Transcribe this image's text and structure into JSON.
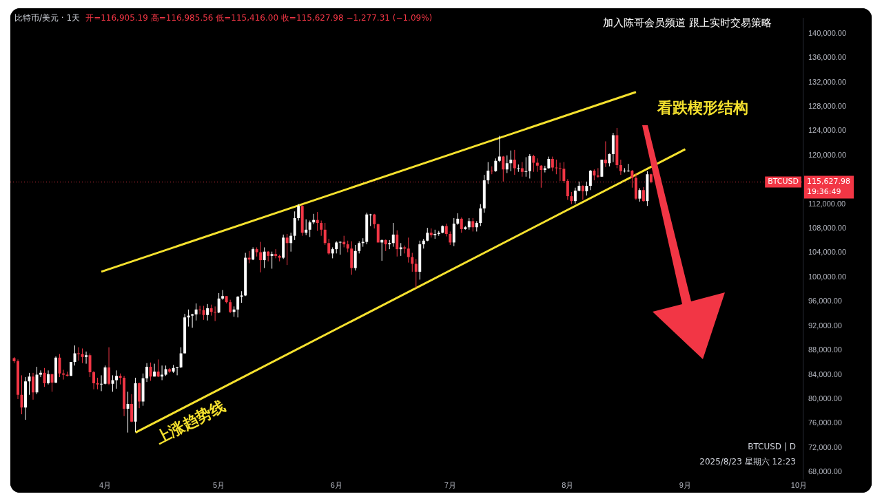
{
  "chart_data": {
    "type": "candlestick",
    "title": "比特币/美元 · 1天",
    "subtitle": "开=116,905.19 高=116,985.56 低=115,416.00 收=115,627.98 −1,277.31 (−1.09%)",
    "x": [
      "2025-03-08",
      "2025-03-09",
      "2025-03-10",
      "2025-03-11",
      "2025-03-12",
      "2025-03-13",
      "2025-03-14",
      "2025-03-15",
      "2025-03-16",
      "2025-03-17",
      "2025-03-18",
      "2025-03-19",
      "2025-03-20",
      "2025-03-21",
      "2025-03-22",
      "2025-03-23",
      "2025-03-24",
      "2025-03-25",
      "2025-03-26",
      "2025-03-27",
      "2025-03-28",
      "2025-03-29",
      "2025-03-30",
      "2025-03-31",
      "2025-04-01",
      "2025-04-02",
      "2025-04-03",
      "2025-04-04",
      "2025-04-05",
      "2025-04-06",
      "2025-04-07",
      "2025-04-08",
      "2025-04-09",
      "2025-04-10",
      "2025-04-11",
      "2025-04-12",
      "2025-04-13",
      "2025-04-14",
      "2025-04-15",
      "2025-04-16",
      "2025-04-17",
      "2025-04-18",
      "2025-04-19",
      "2025-04-20",
      "2025-04-21",
      "2025-04-22",
      "2025-04-23",
      "2025-04-24",
      "2025-04-25",
      "2025-04-26",
      "2025-04-27",
      "2025-04-28",
      "2025-04-29",
      "2025-04-30",
      "2025-05-01",
      "2025-05-02",
      "2025-05-03",
      "2025-05-04",
      "2025-05-05",
      "2025-05-06",
      "2025-05-07",
      "2025-05-08",
      "2025-05-09",
      "2025-05-10",
      "2025-05-11",
      "2025-05-12",
      "2025-05-13",
      "2025-05-14",
      "2025-05-15",
      "2025-05-16",
      "2025-05-17",
      "2025-05-18",
      "2025-05-19",
      "2025-05-20",
      "2025-05-21",
      "2025-05-22",
      "2025-05-23",
      "2025-05-24",
      "2025-05-25",
      "2025-05-26",
      "2025-05-27",
      "2025-05-28",
      "2025-05-29",
      "2025-05-30",
      "2025-05-31",
      "2025-06-01",
      "2025-06-02",
      "2025-06-03",
      "2025-06-04",
      "2025-06-05",
      "2025-06-06",
      "2025-06-07",
      "2025-06-08",
      "2025-06-09",
      "2025-06-10",
      "2025-06-11",
      "2025-06-12",
      "2025-06-13",
      "2025-06-14",
      "2025-06-15",
      "2025-06-16",
      "2025-06-17",
      "2025-06-18",
      "2025-06-19",
      "2025-06-20",
      "2025-06-21",
      "2025-06-22",
      "2025-06-23",
      "2025-06-24",
      "2025-06-25",
      "2025-06-26",
      "2025-06-27",
      "2025-06-28",
      "2025-06-29",
      "2025-06-30",
      "2025-07-01",
      "2025-07-02",
      "2025-07-03",
      "2025-07-04",
      "2025-07-05",
      "2025-07-06",
      "2025-07-07",
      "2025-07-08",
      "2025-07-09",
      "2025-07-10",
      "2025-07-11",
      "2025-07-12",
      "2025-07-13",
      "2025-07-14",
      "2025-07-15",
      "2025-07-16",
      "2025-07-17",
      "2025-07-18",
      "2025-07-19",
      "2025-07-20",
      "2025-07-21",
      "2025-07-22",
      "2025-07-23",
      "2025-07-24",
      "2025-07-25",
      "2025-07-26",
      "2025-07-27",
      "2025-07-28",
      "2025-07-29",
      "2025-07-30",
      "2025-07-31",
      "2025-08-01",
      "2025-08-02",
      "2025-08-03",
      "2025-08-04",
      "2025-08-05",
      "2025-08-06",
      "2025-08-07",
      "2025-08-08",
      "2025-08-09",
      "2025-08-10",
      "2025-08-11",
      "2025-08-12",
      "2025-08-13",
      "2025-08-14",
      "2025-08-15",
      "2025-08-16",
      "2025-08-17",
      "2025-08-18",
      "2025-08-19",
      "2025-08-20",
      "2025-08-21",
      "2025-08-22",
      "2025-08-23"
    ],
    "ohlc": [
      [
        86700,
        86900,
        85900,
        86200
      ],
      [
        86200,
        86500,
        80000,
        80700
      ],
      [
        80700,
        83900,
        77500,
        78600
      ],
      [
        78600,
        83600,
        76600,
        82900
      ],
      [
        82900,
        84300,
        80700,
        83700
      ],
      [
        83700,
        84300,
        79900,
        81100
      ],
      [
        81100,
        85300,
        80800,
        84000
      ],
      [
        84000,
        84700,
        83600,
        84300
      ],
      [
        84300,
        85100,
        82000,
        82600
      ],
      [
        82600,
        84700,
        82400,
        84100
      ],
      [
        84100,
        84100,
        81200,
        82700
      ],
      [
        82700,
        87000,
        82600,
        86800
      ],
      [
        86800,
        87400,
        83600,
        84200
      ],
      [
        84200,
        84800,
        83200,
        84000
      ],
      [
        84000,
        84500,
        83700,
        83800
      ],
      [
        83800,
        86100,
        83800,
        86100
      ],
      [
        86100,
        88800,
        85500,
        87500
      ],
      [
        87500,
        88500,
        86300,
        87400
      ],
      [
        87400,
        88300,
        85900,
        86900
      ],
      [
        86900,
        87800,
        85800,
        87200
      ],
      [
        87200,
        87500,
        83600,
        84400
      ],
      [
        84400,
        84600,
        81600,
        82600
      ],
      [
        82600,
        83500,
        81600,
        82400
      ],
      [
        82400,
        83900,
        81300,
        82500
      ],
      [
        82500,
        85500,
        82400,
        85200
      ],
      [
        85200,
        88500,
        82300,
        82500
      ],
      [
        82500,
        83900,
        81200,
        83100
      ],
      [
        83100,
        84700,
        81700,
        83800
      ],
      [
        83800,
        84200,
        82400,
        83500
      ],
      [
        83500,
        83800,
        77200,
        78400
      ],
      [
        78400,
        81200,
        74500,
        79200
      ],
      [
        79200,
        80800,
        76200,
        76300
      ],
      [
        76300,
        83500,
        74600,
        82600
      ],
      [
        82600,
        82700,
        78500,
        79600
      ],
      [
        79600,
        84200,
        78900,
        83400
      ],
      [
        83400,
        85900,
        82800,
        85300
      ],
      [
        85300,
        86000,
        83000,
        83700
      ],
      [
        83700,
        85800,
        83700,
        84500
      ],
      [
        84500,
        86500,
        83600,
        83700
      ],
      [
        83700,
        85500,
        83100,
        84000
      ],
      [
        84000,
        85500,
        83800,
        84900
      ],
      [
        84900,
        85100,
        84300,
        84500
      ],
      [
        84500,
        85600,
        84300,
        85100
      ],
      [
        85100,
        85300,
        83900,
        85200
      ],
      [
        85200,
        88500,
        85100,
        87500
      ],
      [
        87500,
        94000,
        87500,
        93400
      ],
      [
        93400,
        94700,
        91900,
        93700
      ],
      [
        93700,
        94000,
        91700,
        93900
      ],
      [
        93900,
        95700,
        92900,
        94700
      ],
      [
        94700,
        95300,
        93900,
        94600
      ],
      [
        94600,
        95300,
        93000,
        93800
      ],
      [
        93800,
        95600,
        92900,
        94900
      ],
      [
        94900,
        95500,
        93700,
        94300
      ],
      [
        94300,
        95200,
        92800,
        94200
      ],
      [
        94200,
        97400,
        94100,
        96500
      ],
      [
        96500,
        97900,
        96300,
        96900
      ],
      [
        96900,
        96900,
        95700,
        95900
      ],
      [
        95900,
        96300,
        94100,
        94300
      ],
      [
        94300,
        95200,
        93500,
        94700
      ],
      [
        94700,
        96900,
        93400,
        96800
      ],
      [
        96800,
        97700,
        95800,
        97000
      ],
      [
        97000,
        104000,
        96900,
        103200
      ],
      [
        103200,
        104300,
        102300,
        102900
      ],
      [
        102900,
        104900,
        102800,
        104600
      ],
      [
        104600,
        104900,
        103400,
        104100
      ],
      [
        104100,
        105800,
        100800,
        102800
      ],
      [
        102800,
        104900,
        101500,
        104200
      ],
      [
        104200,
        104300,
        102600,
        103500
      ],
      [
        103500,
        104200,
        101400,
        103800
      ],
      [
        103800,
        104600,
        103100,
        103500
      ],
      [
        103500,
        103700,
        102600,
        103200
      ],
      [
        103200,
        107000,
        103000,
        106500
      ],
      [
        106500,
        107100,
        102000,
        105600
      ],
      [
        105600,
        107300,
        104200,
        106800
      ],
      [
        106800,
        110800,
        106100,
        109700
      ],
      [
        109700,
        112000,
        109300,
        111700
      ],
      [
        111700,
        111900,
        106800,
        107300
      ],
      [
        107300,
        109500,
        106900,
        107800
      ],
      [
        107800,
        109300,
        106600,
        109000
      ],
      [
        109000,
        110400,
        108700,
        109400
      ],
      [
        109400,
        110700,
        107600,
        108900
      ],
      [
        108900,
        109300,
        106800,
        107800
      ],
      [
        107800,
        108900,
        105300,
        105600
      ],
      [
        105600,
        106300,
        103700,
        103900
      ],
      [
        103900,
        104900,
        103100,
        104600
      ],
      [
        104600,
        105900,
        103900,
        105700
      ],
      [
        105700,
        105900,
        103700,
        105800
      ],
      [
        105800,
        106800,
        104900,
        105400
      ],
      [
        105400,
        106000,
        104100,
        104700
      ],
      [
        104700,
        105900,
        100400,
        101500
      ],
      [
        101500,
        105300,
        101100,
        104300
      ],
      [
        104300,
        105900,
        103900,
        105600
      ],
      [
        105600,
        106400,
        105000,
        105800
      ],
      [
        105800,
        110600,
        105400,
        110300
      ],
      [
        110300,
        110400,
        108400,
        110300
      ],
      [
        110300,
        110400,
        108000,
        108700
      ],
      [
        108700,
        108800,
        105700,
        105700
      ],
      [
        105700,
        106200,
        102700,
        106100
      ],
      [
        106100,
        106200,
        104300,
        105400
      ],
      [
        105400,
        106100,
        104600,
        105600
      ],
      [
        105600,
        108900,
        105000,
        107000
      ],
      [
        107000,
        107700,
        103400,
        104600
      ],
      [
        104600,
        105600,
        103500,
        104900
      ],
      [
        104900,
        105200,
        103900,
        104700
      ],
      [
        104700,
        106500,
        102400,
        103300
      ],
      [
        103300,
        104000,
        100900,
        102200
      ],
      [
        102200,
        103000,
        98200,
        100900
      ],
      [
        100900,
        106000,
        99600,
        105400
      ],
      [
        105400,
        106300,
        104700,
        106000
      ],
      [
        106000,
        108100,
        105900,
        107300
      ],
      [
        107300,
        108000,
        106500,
        106900
      ],
      [
        106900,
        107800,
        106300,
        107100
      ],
      [
        107100,
        107600,
        106800,
        107300
      ],
      [
        107300,
        108500,
        107200,
        108400
      ],
      [
        108400,
        108800,
        106700,
        107100
      ],
      [
        107100,
        107500,
        105300,
        105700
      ],
      [
        105700,
        109700,
        105100,
        108800
      ],
      [
        108800,
        110500,
        108600,
        109600
      ],
      [
        109600,
        109800,
        107300,
        107900
      ],
      [
        107900,
        108400,
        107800,
        108200
      ],
      [
        108200,
        109700,
        107800,
        109200
      ],
      [
        109200,
        109700,
        107500,
        108200
      ],
      [
        108200,
        109200,
        107500,
        108900
      ],
      [
        108900,
        112000,
        108400,
        111300
      ],
      [
        111300,
        116800,
        110600,
        115900
      ],
      [
        115900,
        118900,
        115300,
        117500
      ],
      [
        117500,
        118200,
        116900,
        117400
      ],
      [
        117400,
        119500,
        117300,
        119100
      ],
      [
        119100,
        123200,
        118900,
        119800
      ],
      [
        119800,
        119900,
        115700,
        117700
      ],
      [
        117700,
        120000,
        117100,
        118700
      ],
      [
        118700,
        120800,
        117400,
        119300
      ],
      [
        119300,
        120900,
        116800,
        117900
      ],
      [
        117900,
        118500,
        117300,
        117900
      ],
      [
        117900,
        118900,
        116500,
        117300
      ],
      [
        117300,
        119700,
        116500,
        117400
      ],
      [
        117400,
        120200,
        116200,
        119900
      ],
      [
        119900,
        120100,
        117300,
        118800
      ],
      [
        118800,
        119500,
        117300,
        118300
      ],
      [
        118300,
        118400,
        114700,
        117600
      ],
      [
        117600,
        118300,
        117200,
        117900
      ],
      [
        117900,
        119800,
        117800,
        119400
      ],
      [
        119400,
        119800,
        117400,
        118000
      ],
      [
        118000,
        119300,
        116900,
        117900
      ],
      [
        117900,
        118800,
        115800,
        117800
      ],
      [
        117800,
        118900,
        115500,
        115800
      ],
      [
        115800,
        116100,
        112700,
        113300
      ],
      [
        113300,
        114000,
        112000,
        112500
      ],
      [
        112500,
        114700,
        112100,
        114200
      ],
      [
        114200,
        115700,
        114100,
        115000
      ],
      [
        115000,
        115100,
        112700,
        114100
      ],
      [
        114100,
        115700,
        113400,
        115000
      ],
      [
        115000,
        117600,
        114300,
        117500
      ],
      [
        117500,
        117700,
        115900,
        116700
      ],
      [
        116700,
        117900,
        116300,
        116500
      ],
      [
        116500,
        119300,
        116500,
        119300
      ],
      [
        119300,
        122300,
        118100,
        118700
      ],
      [
        118700,
        120300,
        118200,
        120200
      ],
      [
        120200,
        123700,
        118900,
        123300
      ],
      [
        123300,
        124500,
        117900,
        118400
      ],
      [
        118400,
        119300,
        116800,
        117400
      ],
      [
        117400,
        117900,
        117200,
        117500
      ],
      [
        117500,
        118600,
        117300,
        117500
      ],
      [
        117500,
        117600,
        114700,
        116300
      ],
      [
        116300,
        117000,
        112700,
        112900
      ],
      [
        112900,
        114600,
        112400,
        114300
      ],
      [
        114300,
        114800,
        112400,
        112500
      ],
      [
        112500,
        117400,
        111700,
        116900
      ],
      [
        116905.19,
        116985.56,
        115416.0,
        115627.98
      ]
    ],
    "colors": [
      "#f23645",
      "#f23645",
      "#f23645",
      "#ffffff",
      "#ffffff",
      "#f23645",
      "#ffffff",
      "#ffffff",
      "#f23645",
      "#ffffff",
      "#f23645",
      "#ffffff",
      "#f23645",
      "#f23645",
      "#f23645",
      "#ffffff",
      "#ffffff",
      "#f23645",
      "#f23645",
      "#ffffff",
      "#f23645",
      "#f23645",
      "#f23645",
      "#ffffff",
      "#ffffff",
      "#f23645",
      "#ffffff",
      "#ffffff",
      "#f23645",
      "#f23645",
      "#ffffff",
      "#f23645",
      "#ffffff",
      "#f23645",
      "#ffffff",
      "#ffffff",
      "#f23645",
      "#ffffff",
      "#f23645",
      "#ffffff",
      "#ffffff",
      "#f23645",
      "#ffffff",
      "#ffffff",
      "#ffffff",
      "#ffffff",
      "#ffffff",
      "#ffffff",
      "#ffffff",
      "#f23645",
      "#f23645",
      "#ffffff",
      "#f23645",
      "#f23645",
      "#ffffff",
      "#ffffff",
      "#f23645",
      "#f23645",
      "#ffffff",
      "#ffffff",
      "#ffffff",
      "#ffffff",
      "#f23645",
      "#ffffff",
      "#f23645",
      "#f23645",
      "#ffffff",
      "#f23645",
      "#ffffff",
      "#f23645",
      "#f23645",
      "#ffffff",
      "#f23645",
      "#ffffff",
      "#ffffff",
      "#ffffff",
      "#f23645",
      "#ffffff",
      "#ffffff",
      "#ffffff",
      "#f23645",
      "#f23645",
      "#f23645",
      "#f23645",
      "#ffffff",
      "#ffffff",
      "#ffffff",
      "#f23645",
      "#f23645",
      "#f23645",
      "#ffffff",
      "#ffffff",
      "#ffffff",
      "#ffffff",
      "#ffffff",
      "#f23645",
      "#f23645",
      "#ffffff",
      "#f23645",
      "#ffffff",
      "#ffffff",
      "#f23645",
      "#ffffff",
      "#f23645",
      "#f23645",
      "#f23645",
      "#f23645",
      "#ffffff",
      "#ffffff",
      "#ffffff",
      "#f23645",
      "#ffffff",
      "#ffffff",
      "#ffffff",
      "#f23645",
      "#f23645",
      "#ffffff",
      "#ffffff",
      "#f23645",
      "#ffffff",
      "#ffffff",
      "#f23645",
      "#ffffff",
      "#ffffff",
      "#ffffff",
      "#ffffff",
      "#f23645",
      "#ffffff",
      "#ffffff",
      "#f23645",
      "#ffffff",
      "#ffffff",
      "#f23645",
      "#ffffff",
      "#f23645",
      "#ffffff",
      "#ffffff",
      "#f23645",
      "#f23645",
      "#f23645",
      "#ffffff",
      "#ffffff",
      "#f23645",
      "#f23645",
      "#f23645",
      "#f23645",
      "#f23645",
      "#f23645",
      "#ffffff",
      "#ffffff",
      "#f23645",
      "#ffffff",
      "#ffffff",
      "#f23645",
      "#f23645",
      "#ffffff",
      "#f23645",
      "#ffffff",
      "#ffffff",
      "#f23645",
      "#f23645",
      "#ffffff",
      "#ffffff",
      "#f23645",
      "#f23645",
      "#ffffff",
      "#f23645",
      "#ffffff",
      "#f23645"
    ],
    "series": [
      {
        "type": "line",
        "color": "#f5e12e",
        "x": [
          "2025-03-31",
          "2025-08-19"
        ],
        "values": [
          100900,
          130400
        ]
      },
      {
        "type": "line",
        "color": "#f5e12e",
        "x": [
          "2025-04-09",
          "2025-09-01"
        ],
        "values": [
          74500,
          121000
        ]
      }
    ],
    "ref_lines": [
      {
        "axis": "y",
        "value": 115627.98,
        "label": "BTCUSD",
        "color": "#f23645",
        "line_style": "dotted"
      }
    ],
    "annotations": [
      "加入陈哥会员频道  跟上实时交易策略",
      "BTCUSD | D",
      "2025/8/23 星期六 12:23",
      "115,627.98",
      "19:36:49",
      "看跌楔形结构",
      "上涨趋势线"
    ],
    "xlim": [
      "2025-03-07",
      "2025-10-02"
    ],
    "xticks": [
      {
        "value": "2025-04-01",
        "label": "4月"
      },
      {
        "value": "2025-05-01",
        "label": "5月"
      },
      {
        "value": "2025-06-01",
        "label": "6月"
      },
      {
        "value": "2025-07-01",
        "label": "7月"
      },
      {
        "value": "2025-08-01",
        "label": "8月"
      },
      {
        "value": "2025-09-01",
        "label": "9月"
      },
      {
        "value": "2025-10-01",
        "label": "10月"
      }
    ],
    "ylim": [
      66800,
      142500
    ],
    "yticks": [
      {
        "value": 68000,
        "label": "68,000.00"
      },
      {
        "value": 72000,
        "label": "72,000.00"
      },
      {
        "value": 76000,
        "label": "76,000.00"
      },
      {
        "value": 80000,
        "label": "80,000.00"
      },
      {
        "value": 84000,
        "label": "84,000.00"
      },
      {
        "value": 88000,
        "label": "88,000.00"
      },
      {
        "value": 92000,
        "label": "92,000.00"
      },
      {
        "value": 96000,
        "label": "96,000.00"
      },
      {
        "value": 100000,
        "label": "100,000.00"
      },
      {
        "value": 104000,
        "label": "104,000.00"
      },
      {
        "value": 108000,
        "label": "108,000.00"
      },
      {
        "value": 112000,
        "label": "112,000.00"
      },
      {
        "value": 120000,
        "label": "120,000.00"
      },
      {
        "value": 124000,
        "label": "124,000.00"
      },
      {
        "value": 128000,
        "label": "128,000.00"
      },
      {
        "value": 132000,
        "label": "132,000.00"
      },
      {
        "value": 136000,
        "label": "136,000.00"
      },
      {
        "value": 140000,
        "label": "140,000.00"
      }
    ]
  }
}
